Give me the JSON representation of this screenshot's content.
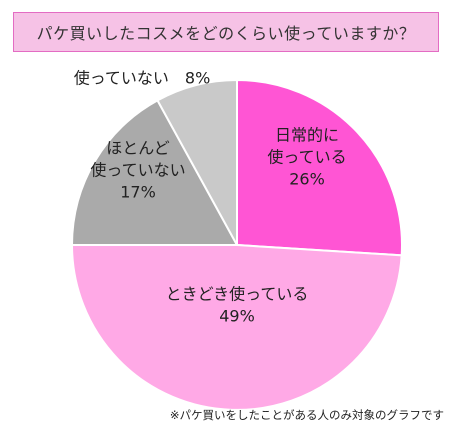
{
  "title": "パケ買いしたコスメをどのくらい使っていますか？",
  "footnote": "※パケ買いをしたことがある人のみ対象のグラフです",
  "chart_data": {
    "type": "pie",
    "title": "パケ買いしたコスメをどのくらい使っていますか？",
    "start": "12 o'clock, clockwise",
    "slices": [
      {
        "label_lines": [
          "日常的に",
          "使っている"
        ],
        "value": 26,
        "value_text": "26%",
        "color": "#ff55d4"
      },
      {
        "label_lines": [
          "ときどき使っている"
        ],
        "value": 49,
        "value_text": "49%",
        "color": "#ffa9e6"
      },
      {
        "label_lines": [
          "ほとんど",
          "使っていない"
        ],
        "value": 17,
        "value_text": "17%",
        "color": "#aaaaaa"
      },
      {
        "label_lines": [
          "使っていない　8%"
        ],
        "value": 8,
        "value_text": "",
        "color": "#c9c9c9"
      }
    ]
  }
}
